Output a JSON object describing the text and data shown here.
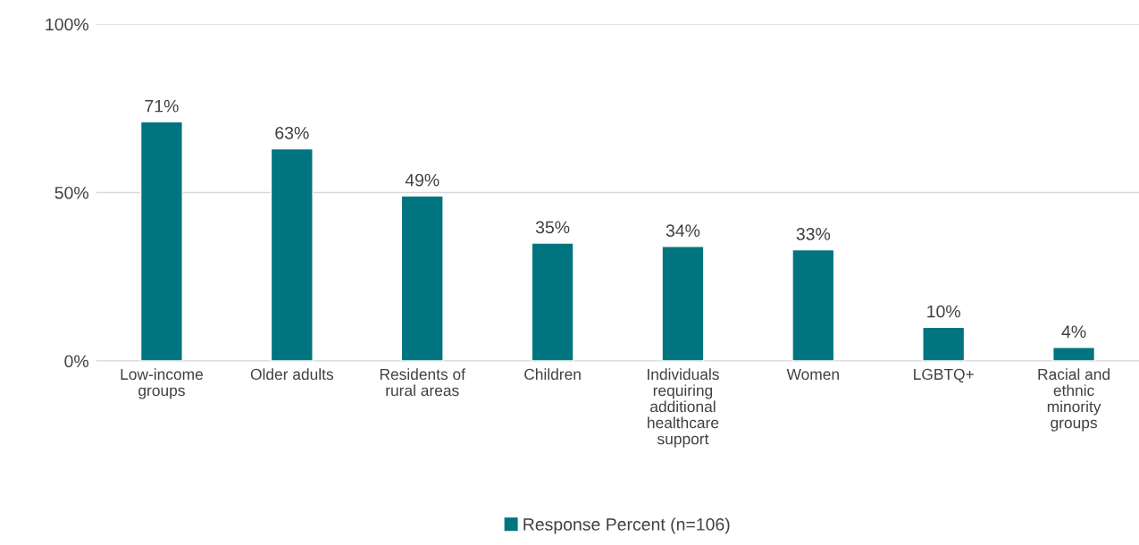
{
  "chart_data": {
    "type": "bar",
    "categories": [
      "Low-income\ngroups",
      "Older adults",
      "Residents of\nrural areas",
      "Children",
      "Individuals\nrequiring\nadditional\nhealthcare\nsupport",
      "Women",
      "LGBTQ+",
      "Racial and\nethnic\nminority\ngroups"
    ],
    "series": [
      {
        "name": "Response Percent (n=106)",
        "color": "#00757f",
        "values": [
          71,
          63,
          49,
          35,
          34,
          33,
          10,
          4
        ],
        "value_labels": [
          "71%",
          "63%",
          "49%",
          "35%",
          "34%",
          "33%",
          "10%",
          "4%"
        ]
      }
    ],
    "ylim": [
      0,
      100
    ],
    "yticks": [
      {
        "value": 0,
        "label": "0%"
      },
      {
        "value": 50,
        "label": "50%"
      },
      {
        "value": 100,
        "label": "100%"
      }
    ],
    "grid": "y",
    "legend": "bottom"
  }
}
